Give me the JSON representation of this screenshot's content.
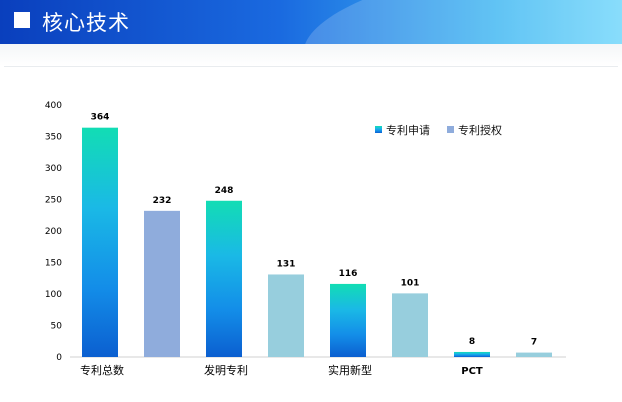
{
  "header": {
    "title": "核心技术",
    "icon": "square-icon"
  },
  "chart_data": {
    "type": "bar",
    "ylim": [
      0,
      400
    ],
    "yticks": [
      0,
      50,
      100,
      150,
      200,
      250,
      300,
      350,
      400
    ],
    "grid": false,
    "legend_position": "top-right",
    "legend": [
      {
        "name": "专利申请",
        "color": "#0e7fd8"
      },
      {
        "name": "专利授权",
        "color": "#8facdc"
      }
    ],
    "categories": [
      "专利总数",
      "发明专利",
      "实用新型",
      "PCT"
    ],
    "series": [
      {
        "name": "专利申请",
        "values": [
          364,
          248,
          116,
          8
        ]
      },
      {
        "name": "专利授权",
        "values": [
          232,
          131,
          101,
          7
        ]
      }
    ]
  }
}
